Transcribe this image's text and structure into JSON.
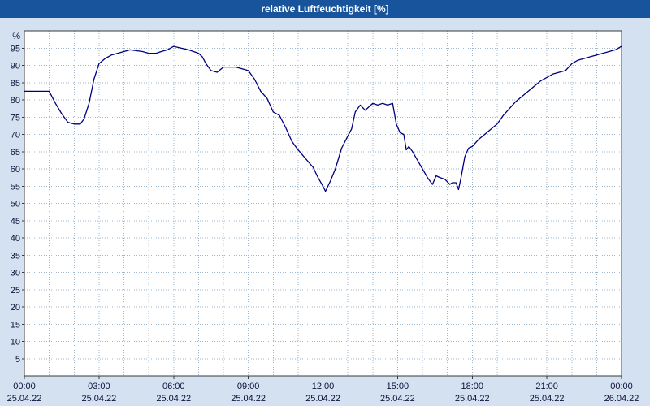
{
  "window": {
    "title": "relative Luftfeuchtigkeit [%]"
  },
  "colors": {
    "titlebar_bg": "#17549b",
    "titlebar_text": "#ffffff",
    "page_bg": "#d3e1f0",
    "plot_bg": "#ffffff",
    "plot_border": "#3a3a3a",
    "grid": "#9fb6cf",
    "label": "#10103a",
    "line": "#000080"
  },
  "chart_data": {
    "type": "line",
    "title": "relative Luftfeuchtigkeit [%]",
    "xlabel": "",
    "ylabel": "%",
    "ylim": [
      0,
      100
    ],
    "xlim_hours": [
      0,
      24
    ],
    "grid": "dotted; vertical every hour, horizontal every 5 percent",
    "legend": "none",
    "y_ticks": [
      5,
      10,
      15,
      20,
      25,
      30,
      35,
      40,
      45,
      50,
      55,
      60,
      65,
      70,
      75,
      80,
      85,
      90,
      95
    ],
    "x_ticks": [
      {
        "hour": 0,
        "time": "00:00",
        "date": "25.04.22"
      },
      {
        "hour": 3,
        "time": "03:00",
        "date": "25.04.22"
      },
      {
        "hour": 6,
        "time": "06:00",
        "date": "25.04.22"
      },
      {
        "hour": 9,
        "time": "09:00",
        "date": "25.04.22"
      },
      {
        "hour": 12,
        "time": "12:00",
        "date": "25.04.22"
      },
      {
        "hour": 15,
        "time": "15:00",
        "date": "25.04.22"
      },
      {
        "hour": 18,
        "time": "18:00",
        "date": "25.04.22"
      },
      {
        "hour": 21,
        "time": "21:00",
        "date": "25.04.22"
      },
      {
        "hour": 24,
        "time": "00:00",
        "date": "26.04.22"
      }
    ],
    "series": [
      {
        "name": "relative Luftfeuchtigkeit [%]",
        "color": "#000080",
        "x_hours": [
          0,
          0.5,
          1.0,
          1.25,
          1.5,
          1.75,
          2.0,
          2.25,
          2.4,
          2.6,
          2.8,
          3.0,
          3.25,
          3.5,
          4.0,
          4.25,
          4.75,
          5.0,
          5.3,
          5.5,
          5.75,
          6.0,
          6.3,
          6.6,
          7.0,
          7.15,
          7.3,
          7.5,
          7.75,
          8.0,
          8.5,
          8.75,
          9.0,
          9.25,
          9.5,
          9.75,
          10.0,
          10.25,
          10.5,
          10.75,
          11.0,
          11.3,
          11.6,
          11.8,
          12.0,
          12.1,
          12.3,
          12.5,
          12.75,
          13.0,
          13.15,
          13.3,
          13.5,
          13.7,
          13.85,
          14.0,
          14.2,
          14.4,
          14.6,
          14.8,
          14.95,
          15.1,
          15.25,
          15.35,
          15.45,
          15.6,
          15.8,
          16.0,
          16.2,
          16.4,
          16.55,
          16.7,
          16.9,
          17.1,
          17.2,
          17.35,
          17.45,
          17.55,
          17.7,
          17.85,
          18.0,
          18.25,
          18.5,
          18.75,
          19.0,
          19.25,
          19.5,
          19.75,
          20.0,
          20.25,
          20.5,
          20.75,
          21.0,
          21.25,
          21.5,
          21.75,
          22.0,
          22.25,
          22.5,
          22.75,
          23.0,
          23.25,
          23.5,
          23.75,
          24.0
        ],
        "values": [
          82.5,
          82.5,
          82.5,
          79,
          76,
          73.5,
          73,
          73,
          74.5,
          79,
          86,
          90.5,
          92,
          93,
          94,
          94.5,
          94,
          93.5,
          93.5,
          94,
          94.5,
          95.5,
          95,
          94.5,
          93.5,
          92.5,
          90.5,
          88.5,
          88,
          89.5,
          89.5,
          89,
          88.5,
          86,
          82.5,
          80.5,
          76.5,
          75.5,
          72,
          68,
          65.5,
          63,
          60.5,
          57.5,
          55,
          53.5,
          56.5,
          60,
          66,
          69.5,
          71.5,
          76.5,
          78.5,
          77,
          78,
          79,
          78.5,
          79,
          78.5,
          79,
          73,
          70.5,
          70,
          65.5,
          66.5,
          65,
          62.5,
          60,
          57.5,
          55.5,
          58,
          57.5,
          57,
          55.5,
          56,
          56,
          54,
          57.5,
          63.5,
          66,
          66.5,
          68.5,
          70,
          71.5,
          73,
          75.5,
          77.5,
          79.5,
          81,
          82.5,
          84,
          85.5,
          86.5,
          87.5,
          88,
          88.5,
          90.5,
          91.5,
          92,
          92.5,
          93,
          93.5,
          94,
          94.5,
          95.5
        ]
      }
    ]
  }
}
